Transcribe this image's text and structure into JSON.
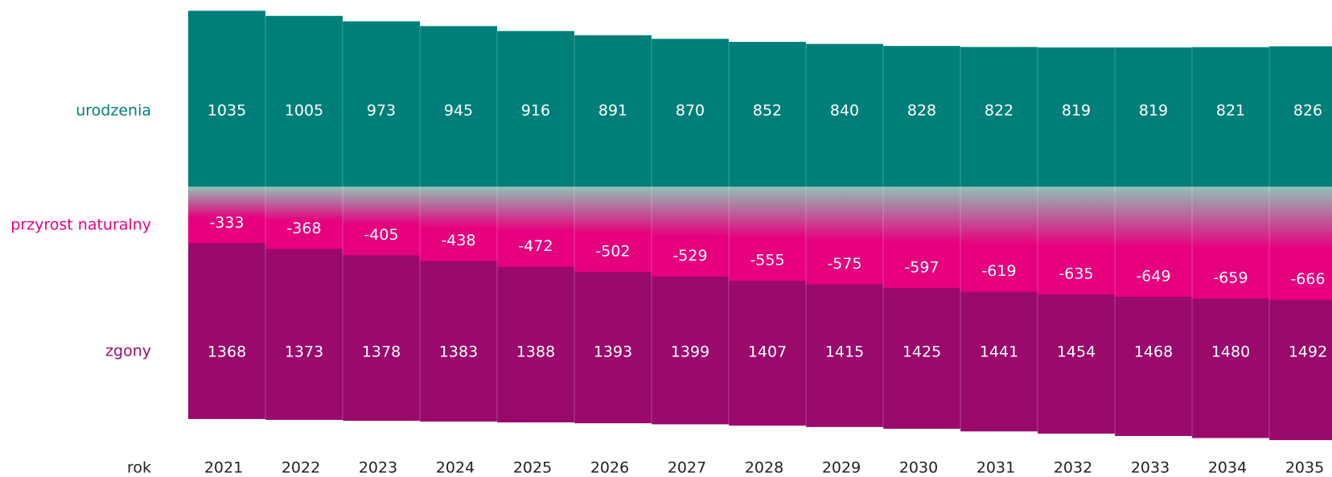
{
  "chart_data": {
    "type": "birth-death-bars",
    "x_label": "rok",
    "categories": [
      "2021",
      "2022",
      "2023",
      "2024",
      "2025",
      "2026",
      "2027",
      "2028",
      "2029",
      "2030",
      "2031",
      "2032",
      "2033",
      "2034",
      "2035"
    ],
    "series": [
      {
        "name": "urodzenia",
        "color": "#007f7a",
        "values": [
          1035,
          1005,
          973,
          945,
          916,
          891,
          870,
          852,
          840,
          828,
          822,
          819,
          819,
          821,
          826
        ]
      },
      {
        "name": "przyrost naturalny",
        "color": "#e6007e",
        "values": [
          -333,
          -368,
          -405,
          -438,
          -472,
          -502,
          -529,
          -555,
          -575,
          -597,
          -619,
          -635,
          -649,
          -659,
          -666
        ]
      },
      {
        "name": "zgony",
        "color": "#990a6b",
        "values": [
          1368,
          1373,
          1378,
          1383,
          1388,
          1393,
          1399,
          1407,
          1415,
          1425,
          1441,
          1454,
          1468,
          1480,
          1492
        ]
      }
    ]
  }
}
